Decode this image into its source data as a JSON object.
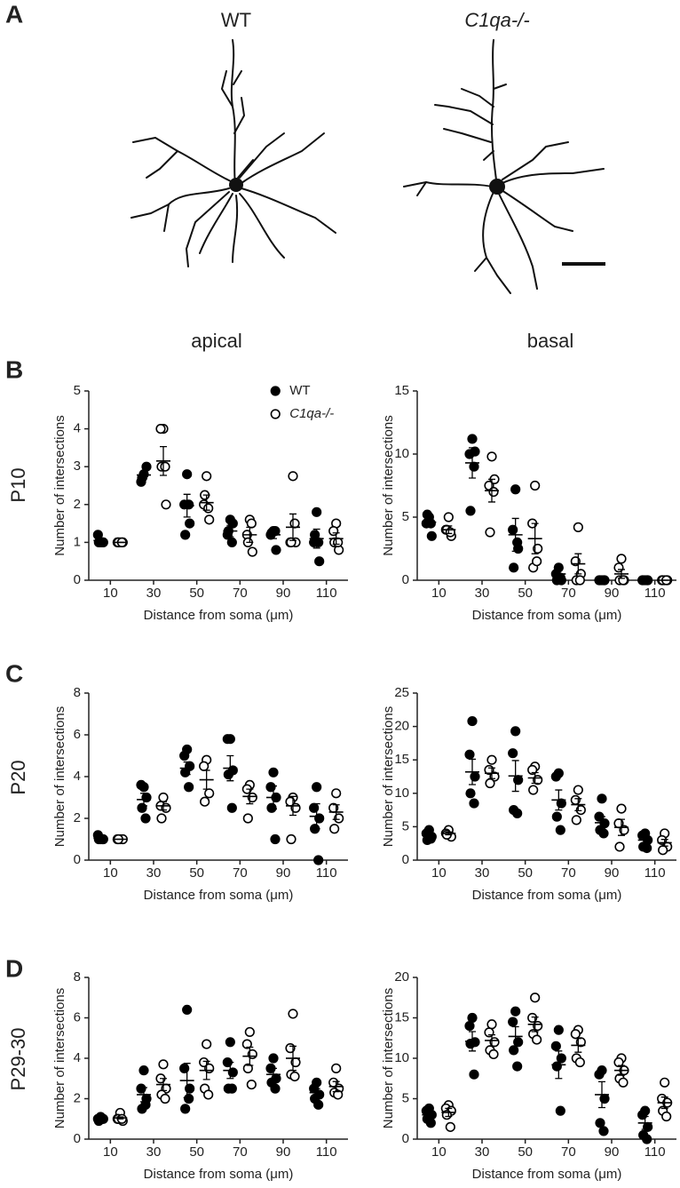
{
  "figure": {
    "panel_labels": [
      "A",
      "B",
      "C",
      "D"
    ],
    "neuron_titles": [
      "WT",
      "C1qa-/-"
    ],
    "column_titles": [
      "apical",
      "basal"
    ],
    "row_labels": [
      "P10",
      "P20",
      "P29-30"
    ]
  },
  "chart_data": [
    {
      "type": "dot",
      "categories": [
        "10",
        "30",
        "50",
        "70",
        "90",
        "110"
      ],
      "xlabel": "Distance from soma (μm)",
      "ylabel": "Number of intersections",
      "ylim": [
        0,
        5
      ],
      "yticks": [
        0,
        1,
        2,
        3,
        4,
        5
      ],
      "legend": "top",
      "series": [
        {
          "name": "WT",
          "color": "#000000",
          "marker": "filled",
          "values": [
            [
              1,
              1.2,
              1,
              1,
              1
            ],
            [
              2.8,
              2.6,
              3.0,
              2.7
            ],
            [
              2.8,
              2,
              1.5,
              1.2,
              2
            ],
            [
              1.6,
              1.2,
              1.5,
              1.3,
              1
            ],
            [
              1.3,
              1.2,
              0.8,
              1.25,
              1.3
            ],
            [
              1.8,
              1,
              0.5,
              1.2,
              1
            ]
          ],
          "mean": [
            1.05,
            2.78,
            1.97,
            1.3,
            1.2,
            1.1
          ],
          "sem": [
            0.04,
            0.1,
            0.3,
            0.15,
            0.1,
            0.25
          ]
        },
        {
          "name": "C1qa-/-",
          "color": "#000000",
          "marker": "open",
          "values": [
            [
              1,
              1,
              1,
              1,
              1
            ],
            [
              4,
              4,
              2,
              3,
              3
            ],
            [
              2.75,
              2,
              1.6,
              2.25,
              1.9
            ],
            [
              1.6,
              1.2,
              0.75,
              1.0,
              1.5
            ],
            [
              2.75,
              1,
              1,
              1.0,
              1.5
            ],
            [
              1.5,
              1.3,
              0.8,
              1,
              1
            ]
          ],
          "mean": [
            1,
            3.15,
            2.05,
            1.2,
            1.4,
            1.1
          ],
          "sem": [
            0,
            0.38,
            0.2,
            0.2,
            0.35,
            0.15
          ]
        }
      ]
    },
    {
      "type": "dot",
      "categories": [
        "10",
        "30",
        "50",
        "70",
        "90",
        "110"
      ],
      "xlabel": "Distance from soma (μm)",
      "ylabel": "Number of intersections",
      "ylim": [
        0,
        15
      ],
      "yticks": [
        0,
        5,
        10,
        15
      ],
      "series": [
        {
          "color": "#000000",
          "marker": "filled",
          "values": [
            [
              5,
              4.5,
              3.5,
              5.2,
              4.5
            ],
            [
              11.2,
              10,
              10.2,
              5.5,
              9
            ],
            [
              7.2,
              4,
              2.5,
              1,
              3
            ],
            [
              1,
              0.5,
              0,
              0,
              0.2
            ],
            [
              0,
              0,
              0,
              0,
              0
            ],
            [
              0,
              0,
              0,
              0,
              0
            ]
          ],
          "mean": [
            4.6,
            9.3,
            3.6,
            0.5,
            0,
            0
          ],
          "sem": [
            0.3,
            1.2,
            1.3,
            0.3,
            0,
            0
          ]
        },
        {
          "color": "#000000",
          "marker": "open",
          "values": [
            [
              5,
              4,
              3.5,
              4,
              3.8
            ],
            [
              9.8,
              7.5,
              8,
              3.8,
              7
            ],
            [
              7.5,
              4.5,
              2.5,
              1,
              1.5
            ],
            [
              4.2,
              1.5,
              0.5,
              0,
              0
            ],
            [
              1.7,
              1,
              0,
              0,
              0
            ],
            [
              0,
              0,
              0,
              0,
              0
            ]
          ],
          "mean": [
            4,
            7.1,
            3.3,
            1.3,
            0.5,
            0
          ],
          "sem": [
            0.3,
            0.9,
            1.2,
            0.8,
            0.35,
            0
          ]
        }
      ]
    },
    {
      "type": "dot",
      "categories": [
        "10",
        "30",
        "50",
        "70",
        "90",
        "110"
      ],
      "xlabel": "Distance from soma (μm)",
      "ylabel": "Number of intersections",
      "ylim": [
        0,
        8
      ],
      "yticks": [
        0,
        2,
        4,
        6,
        8
      ],
      "series": [
        {
          "color": "#000000",
          "marker": "filled",
          "values": [
            [
              1,
              1.2,
              1,
              1,
              1
            ],
            [
              3.5,
              3.6,
              3,
              2.5,
              2
            ],
            [
              5.3,
              5,
              4.5,
              4.2,
              3.5
            ],
            [
              5.8,
              5.8,
              4.3,
              4.1,
              2.5
            ],
            [
              4.2,
              3.5,
              3,
              2.5,
              1
            ],
            [
              3.5,
              2.5,
              2,
              1.5,
              0
            ]
          ],
          "mean": [
            1.05,
            2.9,
            4.4,
            4.4,
            3,
            2.1
          ],
          "sem": [
            0.04,
            0.3,
            0.3,
            0.6,
            0.55,
            0.6
          ]
        },
        {
          "color": "#000000",
          "marker": "open",
          "values": [
            [
              1,
              1,
              1,
              1
            ],
            [
              3,
              2.6,
              2.5,
              2
            ],
            [
              4.8,
              4.5,
              3.2,
              2.8
            ],
            [
              3.6,
              3.4,
              3,
              2
            ],
            [
              3,
              2.8,
              2.5,
              1
            ],
            [
              3.2,
              2.5,
              2,
              1.5
            ]
          ],
          "mean": [
            1,
            2.6,
            3.85,
            3.05,
            2.6,
            2.3
          ],
          "sem": [
            0,
            0.2,
            0.45,
            0.35,
            0.45,
            0.35
          ]
        }
      ]
    },
    {
      "type": "dot",
      "categories": [
        "10",
        "30",
        "50",
        "70",
        "90",
        "110"
      ],
      "xlabel": "Distance from soma (μm)",
      "ylabel": "Number of intersections",
      "ylim": [
        0,
        25
      ],
      "yticks": [
        0,
        5,
        10,
        15,
        20,
        25
      ],
      "series": [
        {
          "color": "#000000",
          "marker": "filled",
          "values": [
            [
              4.5,
              4,
              3.5,
              3,
              3.2
            ],
            [
              20.8,
              15.8,
              12.5,
              10,
              8.5
            ],
            [
              19.3,
              16,
              12,
              7.5,
              7
            ],
            [
              13,
              12.5,
              8.5,
              6.5,
              4.5
            ],
            [
              9.2,
              6.5,
              5.5,
              4.5,
              4
            ],
            [
              4,
              3.7,
              3,
              2,
              1.8
            ]
          ],
          "mean": [
            3.7,
            13.2,
            12.6,
            9,
            5.6,
            3
          ],
          "sem": [
            0.3,
            1.9,
            2.3,
            1.5,
            0.9,
            0.4
          ]
        },
        {
          "color": "#000000",
          "marker": "open",
          "values": [
            [
              4.5,
              4,
              3.5,
              3.8
            ],
            [
              15,
              13.5,
              12.5,
              11.5
            ],
            [
              14,
              13.5,
              12,
              10.5
            ],
            [
              10.5,
              9,
              7.5,
              6
            ],
            [
              7.7,
              5.5,
              4.5,
              2
            ],
            [
              4,
              3,
              2,
              1.5
            ]
          ],
          "mean": [
            4,
            13,
            12.3,
            8.3,
            4.9,
            2.6
          ],
          "sem": [
            0.2,
            0.8,
            0.8,
            0.9,
            1.2,
            0.5
          ]
        }
      ]
    },
    {
      "type": "dot",
      "categories": [
        "10",
        "30",
        "50",
        "70",
        "90",
        "110"
      ],
      "xlabel": "Distance from soma (μm)",
      "ylabel": "Number of intersections",
      "ylim": [
        0,
        8
      ],
      "yticks": [
        0,
        2,
        4,
        6,
        8
      ],
      "series": [
        {
          "color": "#000000",
          "marker": "filled",
          "values": [
            [
              1.1,
              1,
              1,
              0.9,
              1
            ],
            [
              3.4,
              2.5,
              2,
              1.5,
              1.7
            ],
            [
              6.4,
              3.5,
              2.5,
              1.5,
              2
            ],
            [
              4.8,
              3.8,
              3.3,
              2.5,
              2.5
            ],
            [
              4,
              3.5,
              3,
              2.8,
              2.5
            ],
            [
              2.8,
              2.5,
              2.2,
              2,
              1.7
            ]
          ],
          "mean": [
            1,
            2.2,
            2.9,
            3.4,
            3.2,
            2.3
          ],
          "sem": [
            0.03,
            0.35,
            0.85,
            0.4,
            0.3,
            0.2
          ]
        },
        {
          "color": "#000000",
          "marker": "open",
          "values": [
            [
              1.3,
              1,
              0.9,
              1,
              1
            ],
            [
              3.7,
              3,
              2.5,
              2.2,
              2
            ],
            [
              4.7,
              3.8,
              3.5,
              2.5,
              2.2
            ],
            [
              5.3,
              4.7,
              4.2,
              3.5,
              2.7
            ],
            [
              6.2,
              4.5,
              3.8,
              3.2,
              3.1
            ],
            [
              3.5,
              2.8,
              2.5,
              2.3,
              2.2
            ]
          ],
          "mean": [
            1.05,
            2.7,
            3.4,
            4.1,
            4,
            2.6
          ],
          "sem": [
            0.05,
            0.3,
            0.45,
            0.45,
            0.6,
            0.25
          ]
        }
      ]
    },
    {
      "type": "dot",
      "categories": [
        "10",
        "30",
        "50",
        "70",
        "90",
        "110"
      ],
      "xlabel": "Distance from soma (μm)",
      "ylabel": "Number of intersections",
      "ylim": [
        0,
        20
      ],
      "yticks": [
        0,
        5,
        10,
        15,
        20
      ],
      "series": [
        {
          "color": "#000000",
          "marker": "filled",
          "values": [
            [
              3.8,
              3.5,
              3,
              2.5,
              2
            ],
            [
              15,
              14,
              12,
              11.8,
              8
            ],
            [
              15.8,
              14.5,
              12,
              11,
              9
            ],
            [
              13.5,
              11.5,
              10,
              9,
              3.5
            ],
            [
              8.5,
              8,
              5,
              2,
              1
            ],
            [
              3.5,
              3,
              1.5,
              0.5,
              0
            ]
          ],
          "mean": [
            3,
            12.1,
            12.7,
            9.2,
            5.5,
            2
          ],
          "sem": [
            0.35,
            1.2,
            1.2,
            1.7,
            1.6,
            0.8
          ]
        },
        {
          "color": "#000000",
          "marker": "open",
          "values": [
            [
              4.2,
              3.8,
              3.5,
              3,
              1.5
            ],
            [
              14.2,
              13.2,
              12,
              11,
              10.5
            ],
            [
              17.5,
              15,
              14,
              13,
              12.3
            ],
            [
              13.5,
              13,
              12,
              10,
              9.5
            ],
            [
              10,
              9.5,
              8.5,
              7.5,
              7
            ],
            [
              7,
              5,
              4.5,
              3.5,
              2.8
            ]
          ],
          "mean": [
            3.3,
            12.2,
            14.2,
            11.6,
            8.5,
            4.5
          ],
          "sem": [
            0.5,
            0.7,
            0.9,
            0.85,
            0.6,
            0.7
          ]
        }
      ]
    }
  ]
}
